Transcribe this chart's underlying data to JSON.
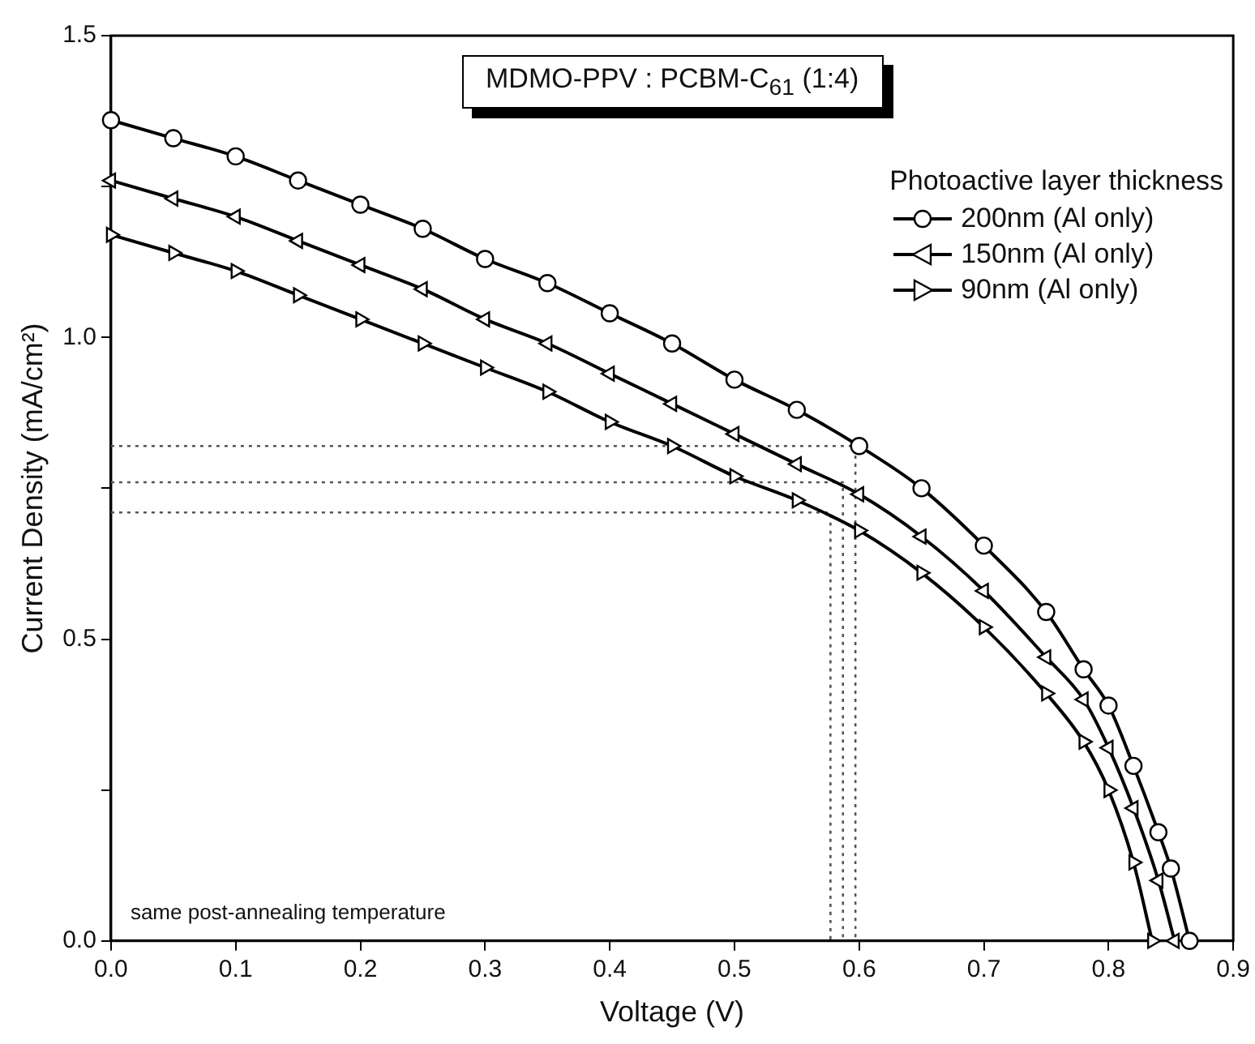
{
  "chart_data": {
    "type": "line",
    "title": "MDMO-PPV : PCBM-C$_{61}$ (1:4)",
    "xlabel": "Voltage (V)",
    "ylabel": "Current Density (mA/cm²)",
    "legend_title": "Photoactive layer thickness",
    "legend": "top right",
    "grid": false,
    "line_style": "solid",
    "annotations": [
      "same post-annealing temperature"
    ],
    "xlim": [
      0,
      0.9
    ],
    "xticks": [
      {
        "value": 0,
        "label": "0.0"
      },
      0.1,
      0.2,
      0.3,
      0.4,
      0.5,
      0.6,
      0.7,
      0.8,
      0.9
    ],
    "ylim": [
      0,
      1.5
    ],
    "yticks": [
      {
        "value": 0,
        "label": "0.0"
      },
      {
        "value": 0.25,
        "label": null
      },
      0.5,
      {
        "value": 0.75,
        "label": null
      },
      {
        "value": 1,
        "label": "1.0"
      },
      {
        "value": 1.25,
        "label": null
      },
      1.5
    ],
    "series": [
      {
        "name": "200nm (Al only)",
        "color": "#000000",
        "marker": "circle",
        "x": [
          0,
          0.05,
          0.1,
          0.15,
          0.2,
          0.25,
          0.3,
          0.35,
          0.4,
          0.45,
          0.5,
          0.55,
          0.6,
          0.65,
          0.7,
          0.75,
          0.78,
          0.8,
          0.82,
          0.84,
          0.85,
          0.865
        ],
        "values": [
          1.36,
          1.33,
          1.3,
          1.26,
          1.22,
          1.18,
          1.13,
          1.09,
          1.04,
          0.99,
          0.93,
          0.88,
          0.82,
          0.75,
          0.655,
          0.545,
          0.45,
          0.39,
          0.29,
          0.18,
          0.12,
          0
        ]
      },
      {
        "name": "150nm (Al only)",
        "color": "#000000",
        "marker": "triangle-left",
        "x": [
          0,
          0.05,
          0.1,
          0.15,
          0.2,
          0.25,
          0.3,
          0.35,
          0.4,
          0.45,
          0.5,
          0.55,
          0.6,
          0.65,
          0.7,
          0.75,
          0.78,
          0.8,
          0.82,
          0.84,
          0.853
        ],
        "values": [
          1.26,
          1.23,
          1.2,
          1.16,
          1.12,
          1.08,
          1.03,
          0.99,
          0.94,
          0.89,
          0.84,
          0.79,
          0.74,
          0.67,
          0.58,
          0.47,
          0.4,
          0.32,
          0.22,
          0.1,
          0
        ]
      },
      {
        "name": "90nm (Al only)",
        "color": "#000000",
        "marker": "triangle-right",
        "x": [
          0,
          0.05,
          0.1,
          0.15,
          0.2,
          0.25,
          0.3,
          0.35,
          0.4,
          0.45,
          0.5,
          0.55,
          0.6,
          0.65,
          0.7,
          0.75,
          0.78,
          0.8,
          0.82,
          0.835
        ],
        "values": [
          1.17,
          1.14,
          1.11,
          1.07,
          1.03,
          0.99,
          0.95,
          0.91,
          0.86,
          0.82,
          0.77,
          0.73,
          0.68,
          0.61,
          0.52,
          0.41,
          0.33,
          0.25,
          0.13,
          0
        ]
      },
      {
        "type": "line",
        "color": "#555555",
        "marker": "none",
        "line_style": "dotted",
        "x": [
          0,
          0.597,
          0.597
        ],
        "values": [
          0.82,
          0.82,
          0
        ]
      },
      {
        "type": "line",
        "color": "#555555",
        "marker": "none",
        "line_style": "dotted",
        "x": [
          0,
          0.587,
          0.587
        ],
        "values": [
          0.76,
          0.76,
          0
        ]
      },
      {
        "type": "line",
        "color": "#555555",
        "marker": "none",
        "line_style": "dotted",
        "x": [
          0,
          0.577,
          0.577
        ],
        "values": [
          0.71,
          0.71,
          0
        ]
      }
    ]
  }
}
